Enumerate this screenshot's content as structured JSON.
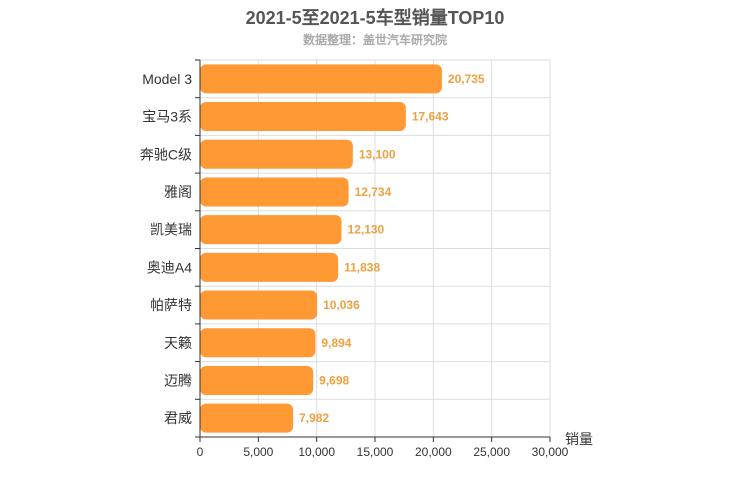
{
  "chart_data": {
    "type": "bar",
    "orientation": "horizontal",
    "title": "2021-5至2021-5车型销量TOP10",
    "subtitle": "数据整理：盖世汽车研究院",
    "xlabel": "销量",
    "ylabel": "",
    "categories": [
      "Model 3",
      "宝马3系",
      "奔驰C级",
      "雅阁",
      "凯美瑞",
      "奥迪A4",
      "帕萨特",
      "天籁",
      "迈腾",
      "君威"
    ],
    "values": [
      20735,
      17643,
      13100,
      12734,
      12130,
      11838,
      10036,
      9894,
      9698,
      7982
    ],
    "value_labels": [
      "20,735",
      "17,643",
      "13,100",
      "12,734",
      "12,130",
      "11,838",
      "10,036",
      "9,894",
      "9,698",
      "7,982"
    ],
    "xlim": [
      0,
      30000
    ],
    "xticks": [
      0,
      5000,
      10000,
      15000,
      20000,
      25000,
      30000
    ],
    "xtick_labels": [
      "0",
      "5,000",
      "10,000",
      "15,000",
      "20,000",
      "25,000",
      "30,000"
    ],
    "grid": true,
    "bar_color": "#ff9933",
    "label_color": "#f0a040"
  }
}
